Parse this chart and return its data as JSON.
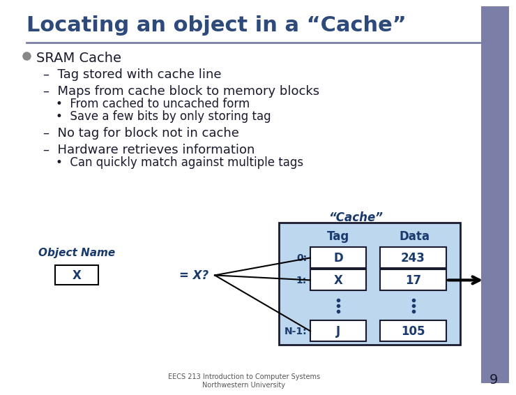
{
  "title": "Locating an object in a “Cache”",
  "title_color": "#2E4A7A",
  "title_fontsize": 22,
  "bg_color": "#FFFFFF",
  "slide_right_bar_color": "#7B7FA8",
  "text_color": "#1A1A2E",
  "bullet_items": [
    {
      "level": 0,
      "text": "SRAM Cache"
    },
    {
      "level": 1,
      "text": "–  Tag stored with cache line"
    },
    {
      "level": 1,
      "text": "–  Maps from cache block to memory blocks"
    },
    {
      "level": 2,
      "text": "•  From cached to uncached form"
    },
    {
      "level": 2,
      "text": "•  Save a few bits by only storing tag"
    },
    {
      "level": 1,
      "text": "–  No tag for block not in cache"
    },
    {
      "level": 1,
      "text": "–  Hardware retrieves information"
    },
    {
      "level": 2,
      "text": "•  Can quickly match against multiple tags"
    }
  ],
  "diagram": {
    "cache_label": "“Cache”",
    "cache_bg": "#BDD7EE",
    "cache_border": "#1A1A2E",
    "cell_bg": "#FFFFFF",
    "cell_border": "#1A1A2E",
    "header_tag": "Tag",
    "header_data": "Data",
    "rows": [
      {
        "index": "0:",
        "tag": "D",
        "data": "243"
      },
      {
        "index": "1:",
        "tag": "X",
        "data": "17"
      },
      {
        "index": "N-1:",
        "tag": "J",
        "data": "105"
      }
    ],
    "object_label": "Object Name",
    "object_value": "X",
    "eq_label": "= X?",
    "arrow_color": "#000000",
    "diag_text_color": "#1A3A6E"
  },
  "footer": "EECS 213 Introduction to Computer Systems\nNorthwestern University",
  "page_number": "9"
}
